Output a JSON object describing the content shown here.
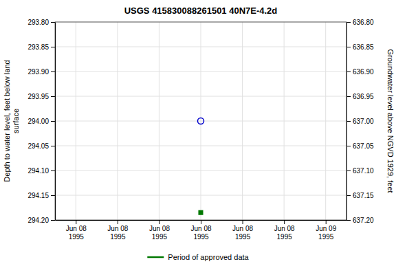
{
  "chart_data": {
    "type": "scatter",
    "title": "USGS 415830088261501 40N7E-4.2d",
    "ylabel": "Depth to water level, feet below land\nsurface",
    "y2label": "Groundwater level above NGVD 1929, feet",
    "categories": [
      "Jun 08\n1995",
      "Jun 08\n1995",
      "Jun 08\n1995",
      "Jun 08\n1995",
      "Jun 08\n1995",
      "Jun 08\n1995",
      "Jun 09\n1995"
    ],
    "series": [
      {
        "color": "#0000cc",
        "marker": "open-circle",
        "values": [
          null,
          null,
          null,
          294.0,
          null,
          null,
          null
        ]
      },
      {
        "name": "Period of approved data",
        "color": "#007700",
        "marker": "square",
        "values": [
          null,
          null,
          null,
          294.185,
          null,
          null,
          null
        ]
      }
    ],
    "ylim": [
      294.2,
      293.8
    ],
    "yticks": [
      {
        "value": 293.8,
        "label": "293.80"
      },
      293.85,
      {
        "value": 293.9,
        "label": "293.90"
      },
      293.95,
      {
        "value": 294.0,
        "label": "294.00"
      },
      294.05,
      {
        "value": 294.1,
        "label": "294.10"
      },
      294.15,
      {
        "value": 294.2,
        "label": "294.20"
      }
    ],
    "y2lim": [
      637.2,
      636.8
    ],
    "y2ticks": [
      {
        "value": 637.2,
        "label": "637.20"
      },
      637.15,
      {
        "value": 637.1,
        "label": "637.10"
      },
      637.05,
      {
        "value": 637.0,
        "label": "637.00"
      },
      636.95,
      {
        "value": 636.9,
        "label": "636.90"
      },
      636.85,
      {
        "value": 636.8,
        "label": "636.80"
      }
    ],
    "grid": true,
    "legend": "bottom"
  }
}
